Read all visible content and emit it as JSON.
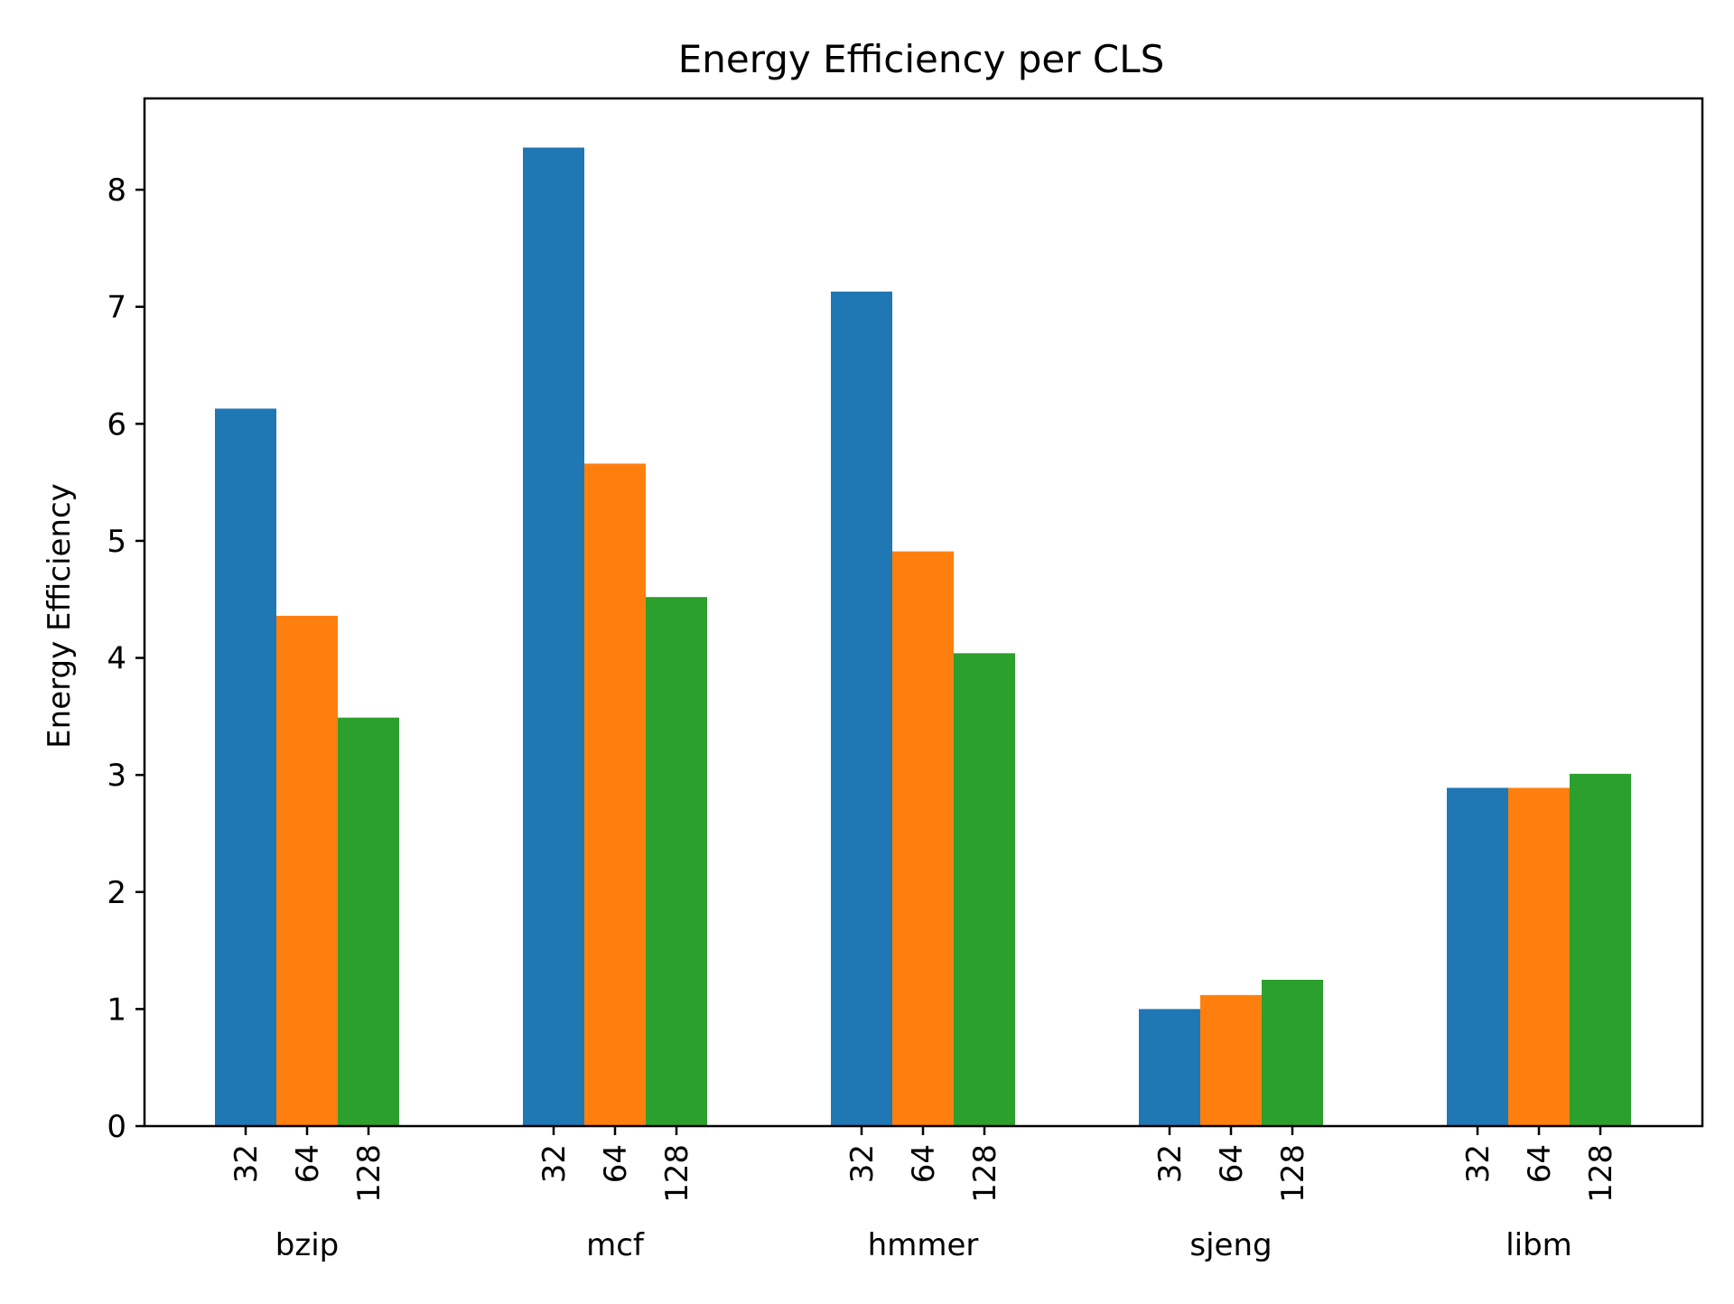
{
  "chart_data": {
    "type": "bar",
    "title": "Energy Efficiency per CLS",
    "xlabel": "",
    "ylabel": "Energy Efficiency",
    "ylim": [
      0,
      8.78
    ],
    "yticks": [
      0,
      1,
      2,
      3,
      4,
      5,
      6,
      7,
      8
    ],
    "ytick_labels": [
      "0",
      "1",
      "2",
      "3",
      "4",
      "5",
      "6",
      "7",
      "8"
    ],
    "categories": [
      "bzip",
      "mcf",
      "hmmer",
      "sjeng",
      "libm"
    ],
    "sub_labels": [
      "32",
      "64",
      "128"
    ],
    "series": [
      {
        "key": "32",
        "color": "#1f77b4",
        "values": [
          6.13,
          8.36,
          7.13,
          1.0,
          2.89
        ]
      },
      {
        "key": "64",
        "color": "#ff7f0e",
        "values": [
          4.36,
          5.66,
          4.91,
          1.12,
          2.89
        ]
      },
      {
        "key": "128",
        "color": "#2ca02c",
        "values": [
          3.49,
          4.52,
          4.04,
          1.25,
          3.01
        ]
      }
    ],
    "grid": false,
    "legend": "none"
  }
}
